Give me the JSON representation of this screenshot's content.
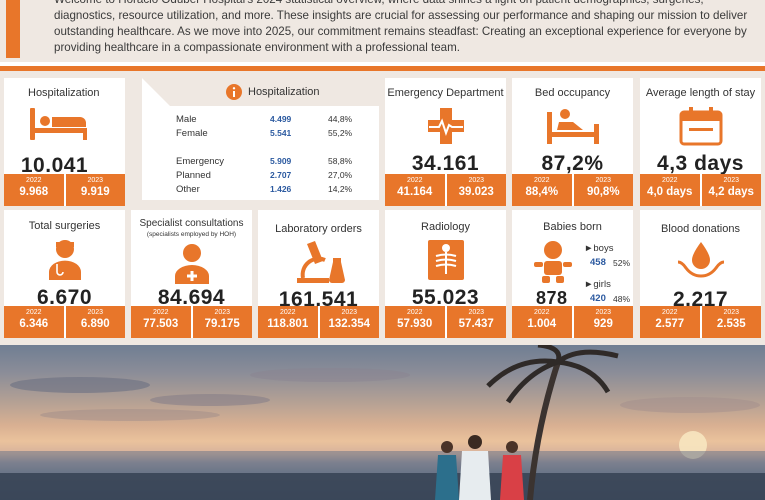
{
  "intro": {
    "line1": "Welcome to Horacio Oduber Hospital's 2024 statistical overview, where data shines a light on patient demographics, surgeries,",
    "line2": "diagnostics, resource utilization, and more. These insights are crucial for assessing our performance and shaping our mission to deliver",
    "line3": "outstanding healthcare. As we move into 2025, our commitment remains steadfast: Creating an exceptional experience for everyone by",
    "line4": "providing healthcare in a compassionate environment with a professional team."
  },
  "year_a": "2022",
  "year_b": "2023",
  "hospitalization": {
    "title": "Hospitalization",
    "value": "10.041",
    "y2022": "9.968",
    "y2023": "9.919"
  },
  "hosp_detail": {
    "title": "Hospitalization",
    "rows": [
      {
        "label": "Male",
        "value": "4.499",
        "pct": "44,8%"
      },
      {
        "label": "Female",
        "value": "5.541",
        "pct": "55,2%"
      },
      {
        "label": "Emergency",
        "value": "5.909",
        "pct": "58,8%"
      },
      {
        "label": "Planned",
        "value": "2.707",
        "pct": "27,0%"
      },
      {
        "label": "Other",
        "value": "1.426",
        "pct": "14,2%"
      }
    ]
  },
  "emergency": {
    "title": "Emergency Department",
    "value": "34.161",
    "y2022": "41.164",
    "y2023": "39.023"
  },
  "bed": {
    "title": "Bed occupancy",
    "value": "87,2%",
    "y2022": "88,4%",
    "y2023": "90,8%"
  },
  "los": {
    "title": "Average length of stay",
    "value": "4,3 days",
    "y2022": "4,0 days",
    "y2023": "4,2 days"
  },
  "surgeries": {
    "title": "Total surgeries",
    "value": "6.670",
    "y2022": "6.346",
    "y2023": "6.890"
  },
  "specialist": {
    "title": "Specialist consultations",
    "subtitle": "(specialists employed by HOH)",
    "value": "84.694",
    "y2022": "77.503",
    "y2023": "79.175"
  },
  "lab": {
    "title": "Laboratory orders",
    "value": "161.541",
    "y2022": "118.801",
    "y2023": "132.354"
  },
  "radiology": {
    "title": "Radiology",
    "value": "55.023",
    "y2022": "57.930",
    "y2023": "57.437"
  },
  "babies": {
    "title": "Babies born",
    "value": "878",
    "y2022": "1.004",
    "y2023": "929",
    "boys_label": "►boys",
    "boys_value": "458",
    "boys_pct": "52%",
    "girls_label": "►girls",
    "girls_value": "420",
    "girls_pct": "48%"
  },
  "blood": {
    "title": "Blood donations",
    "value": "2.217",
    "y2022": "2.577",
    "y2023": "2.535"
  },
  "colors": {
    "accent": "#e8762a",
    "panel": "#efe8e2",
    "value_blue": "#2c5aa0"
  }
}
